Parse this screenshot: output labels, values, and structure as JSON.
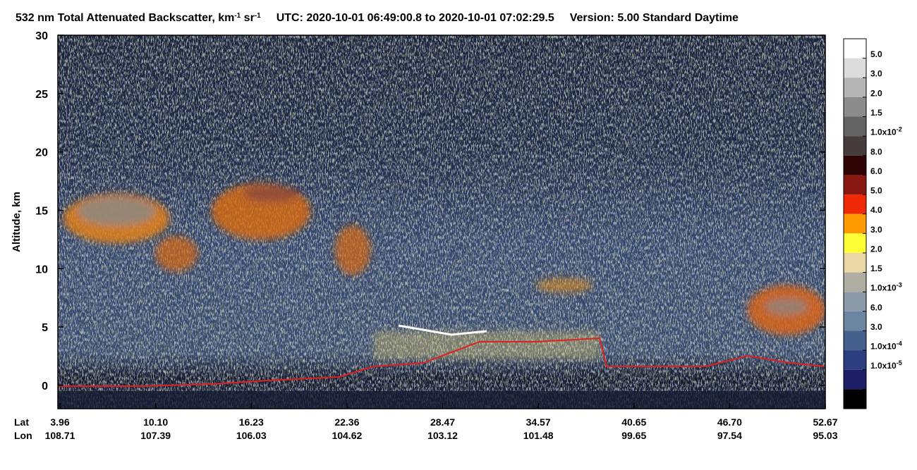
{
  "chart_data": {
    "type": "heatmap",
    "title": [
      {
        "text": "532 nm Total Attenuated Backscatter, km"
      },
      {
        "text": "-1",
        "sup": true
      },
      {
        "text": " sr"
      },
      {
        "text": "-1",
        "sup": true
      }
    ],
    "subtitle": "UTC:  2020-10-01 06:49:00.8  to  2020-10-01 07:02:29.5",
    "version": "Version: 5.00  Standard  Daytime",
    "ylabel": "Altitude, km",
    "ylim": [
      -2,
      30
    ],
    "yticks": [
      0,
      5,
      10,
      15,
      20,
      25,
      30
    ],
    "x_rows": [
      {
        "name": "Lat",
        "labels": [
          "3.96",
          "10.10",
          "16.23",
          "22.36",
          "28.47",
          "34.57",
          "40.65",
          "46.70",
          "52.67"
        ]
      },
      {
        "name": "Lon",
        "labels": [
          "108.71",
          "107.39",
          "106.03",
          "104.62",
          "103.12",
          "101.48",
          "99.65",
          "97.54",
          "95.03"
        ]
      }
    ],
    "colorbar": {
      "colors": [
        "#ffffff",
        "#dcdcdc",
        "#b4b4b4",
        "#8c8c8c",
        "#646464",
        "#463c3c",
        "#2e0404",
        "#8a1812",
        "#f02a08",
        "#ff9a00",
        "#ffff38",
        "#ead8a6",
        "#aeaea2",
        "#8a9aa8",
        "#6c86a2",
        "#46608e",
        "#2c3e80",
        "#1e1e66",
        "#000000"
      ],
      "labels": [
        {
          "text": "5.0"
        },
        {
          "text": "3.0"
        },
        {
          "text": "2.0"
        },
        {
          "text": "1.5"
        },
        {
          "text": "1.0x10",
          "sup": "-2"
        },
        {
          "text": "8.0"
        },
        {
          "text": "6.0"
        },
        {
          "text": "5.0"
        },
        {
          "text": "4.0"
        },
        {
          "text": "3.0"
        },
        {
          "text": "2.0"
        },
        {
          "text": "1.5"
        },
        {
          "text": "1.0x10",
          "sup": "-3"
        },
        {
          "text": "6.0"
        },
        {
          "text": "3.0"
        },
        {
          "text": "1.0x10",
          "sup": "-4"
        },
        {
          "text": "1.0x10",
          "sup": "-5"
        }
      ]
    }
  }
}
